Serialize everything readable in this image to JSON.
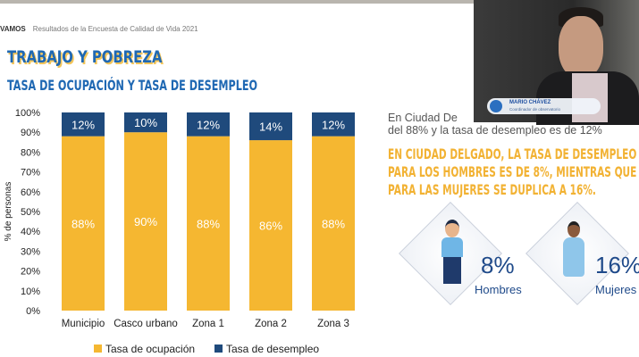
{
  "header": {
    "brand": "VAMOS",
    "subtitle": "Resultados de la Encuesta de Calidad de Vida 2021"
  },
  "slide": {
    "title": "TRABAJO Y POBREZA",
    "subtitle": "TASA DE OCUPACIÓN Y TASA DE DESEMPLEO",
    "text_line1": "En Ciudad De",
    "text_line2": "del 88%  y la tasa de desempleo es de 12%",
    "highlight": [
      "EN CIUDAD DELGADO, LA TASA DE DESEMPLEO",
      "PARA LOS HOMBRES ES DE 8%, MIENTRAS QUE",
      "PARA LAS MUJERES SE DUPLICA A 16%."
    ],
    "men": {
      "value": "8%",
      "label": "Hombres"
    },
    "women": {
      "value": "16%",
      "label": "Mujeres"
    }
  },
  "webcam": {
    "name": "MARIO CHÁVEZ",
    "role": "Coordinador de observatorio"
  },
  "chart_data": {
    "type": "bar",
    "stacked": true,
    "categories": [
      "Municipio",
      "Casco urbano",
      "Zona 1",
      "Zona 2",
      "Zona 3"
    ],
    "series": [
      {
        "name": "Tasa de ocupación",
        "values": [
          88,
          90,
          88,
          86,
          88
        ],
        "color": "#f5b731"
      },
      {
        "name": "Tasa de desempleo",
        "values": [
          12,
          10,
          12,
          14,
          12
        ],
        "color": "#1f4a7c"
      }
    ],
    "ylabel": "% de personas",
    "ylim": [
      0,
      100
    ],
    "yticks": [
      "0%",
      "10%",
      "20%",
      "30%",
      "40%",
      "50%",
      "60%",
      "70%",
      "80%",
      "90%",
      "100%"
    ],
    "legend": "bottom",
    "grid": false
  }
}
